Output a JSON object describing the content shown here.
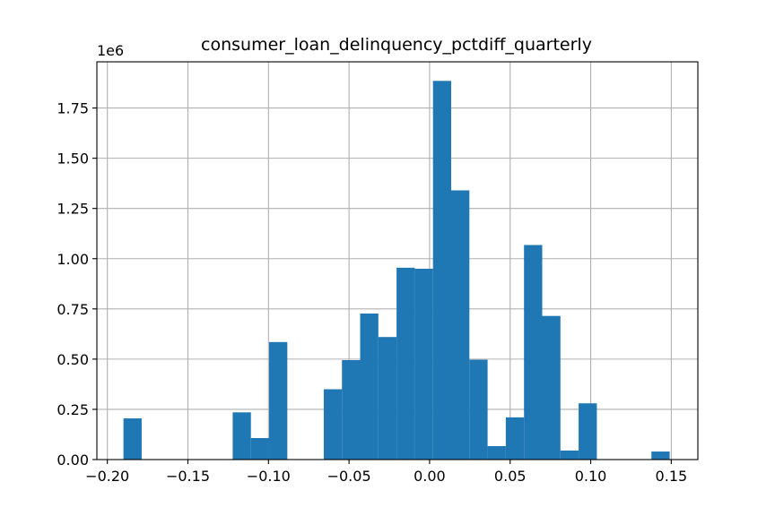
{
  "chart_data": {
    "type": "bar",
    "title": "consumer_loan_delinquency_pctdiff_quarterly",
    "xlabel": "",
    "ylabel": "",
    "y_offset_label": "1e6",
    "xlim": [
      -0.2065,
      0.1665
    ],
    "ylim": [
      0,
      1.98
    ],
    "grid": true,
    "bar_color": "#1f77b4",
    "x_ticks": [
      -0.2,
      -0.15,
      -0.1,
      -0.05,
      0.0,
      0.05,
      0.1,
      0.15
    ],
    "x_tick_labels": [
      "−0.20",
      "−0.15",
      "−0.10",
      "−0.05",
      "0.00",
      "0.05",
      "0.10",
      "0.15"
    ],
    "y_ticks": [
      0,
      0.25,
      0.5,
      0.75,
      1.0,
      1.25,
      1.5,
      1.75
    ],
    "y_tick_labels": [
      "0.00",
      "0.25",
      "0.50",
      "0.75",
      "1.00",
      "1.25",
      "1.50",
      "1.75"
    ],
    "bins": [
      {
        "x0": -0.19,
        "x1": -0.1787,
        "value": 0.205
      },
      {
        "x0": -0.1787,
        "x1": -0.1674,
        "value": 0
      },
      {
        "x0": -0.1674,
        "x1": -0.1561,
        "value": 0
      },
      {
        "x0": -0.1561,
        "x1": -0.1448,
        "value": 0
      },
      {
        "x0": -0.1448,
        "x1": -0.1335,
        "value": 0
      },
      {
        "x0": -0.1335,
        "x1": -0.1222,
        "value": 0
      },
      {
        "x0": -0.1222,
        "x1": -0.1109,
        "value": 0.235
      },
      {
        "x0": -0.1109,
        "x1": -0.0996,
        "value": 0.107
      },
      {
        "x0": -0.0996,
        "x1": -0.0883,
        "value": 0.585
      },
      {
        "x0": -0.0883,
        "x1": -0.077,
        "value": 0
      },
      {
        "x0": -0.077,
        "x1": -0.0657,
        "value": 0
      },
      {
        "x0": -0.0657,
        "x1": -0.0544,
        "value": 0.35
      },
      {
        "x0": -0.0544,
        "x1": -0.0431,
        "value": 0.495
      },
      {
        "x0": -0.0431,
        "x1": -0.0318,
        "value": 0.727
      },
      {
        "x0": -0.0318,
        "x1": -0.0205,
        "value": 0.61
      },
      {
        "x0": -0.0205,
        "x1": -0.0092,
        "value": 0.955
      },
      {
        "x0": -0.0092,
        "x1": 0.0021,
        "value": 0.95
      },
      {
        "x0": 0.0021,
        "x1": 0.0134,
        "value": 1.885
      },
      {
        "x0": 0.0134,
        "x1": 0.0247,
        "value": 1.34
      },
      {
        "x0": 0.0247,
        "x1": 0.036,
        "value": 0.497
      },
      {
        "x0": 0.036,
        "x1": 0.0473,
        "value": 0.067
      },
      {
        "x0": 0.0473,
        "x1": 0.0586,
        "value": 0.21
      },
      {
        "x0": 0.0586,
        "x1": 0.0699,
        "value": 1.068
      },
      {
        "x0": 0.0699,
        "x1": 0.0812,
        "value": 0.715
      },
      {
        "x0": 0.0812,
        "x1": 0.0925,
        "value": 0.045
      },
      {
        "x0": 0.0925,
        "x1": 0.1038,
        "value": 0.28
      },
      {
        "x0": 0.1038,
        "x1": 0.1151,
        "value": 0
      },
      {
        "x0": 0.1151,
        "x1": 0.1264,
        "value": 0
      },
      {
        "x0": 0.1264,
        "x1": 0.1377,
        "value": 0
      },
      {
        "x0": 0.1377,
        "x1": 0.149,
        "value": 0.04
      }
    ]
  }
}
